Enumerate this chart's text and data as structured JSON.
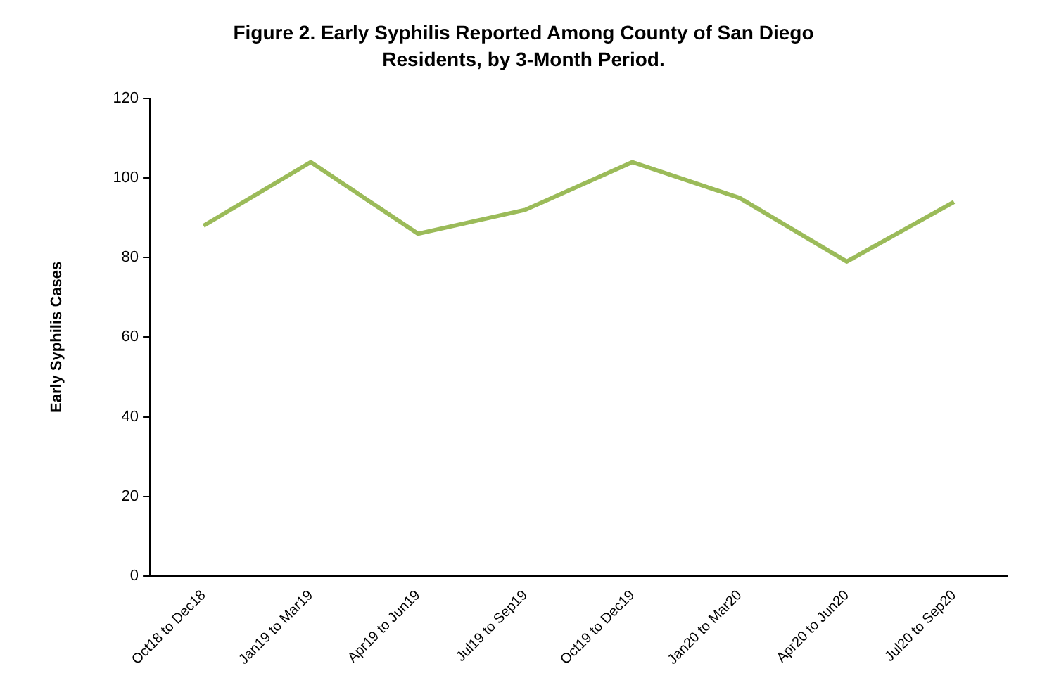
{
  "chart_data": {
    "type": "line",
    "title": "Figure 2. Early Syphilis Reported Among County of San Diego Residents, by 3-Month Period.",
    "ylabel": "Early Syphilis Cases",
    "categories": [
      "Oct18 to Dec18",
      "Jan19 to Mar19",
      "Apr19 to Jun19",
      "Jul19 to Sep19",
      "Oct19 to Dec19",
      "Jan20 to Mar20",
      "Apr20 to Jun20",
      "Jul20 to Sep20"
    ],
    "series": [
      {
        "color": "#9bbb59",
        "values": [
          88,
          104,
          86,
          92,
          104,
          95,
          79,
          94
        ]
      }
    ],
    "ylim": [
      0,
      120
    ],
    "yticks": [
      0,
      20,
      40,
      60,
      80,
      100,
      120
    ],
    "grid": false,
    "legend": false,
    "marker": "none",
    "line_style": "solid"
  }
}
